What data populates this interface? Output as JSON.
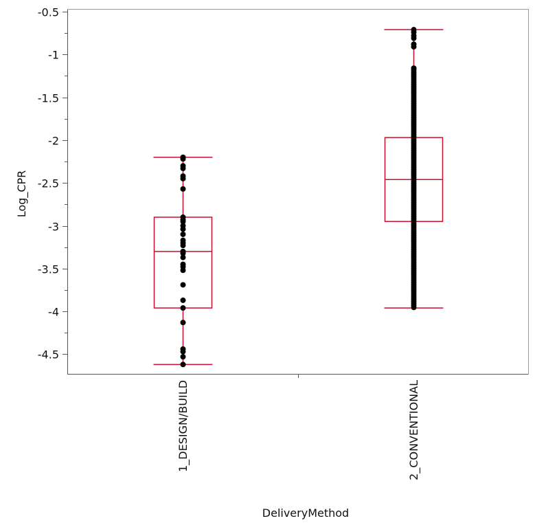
{
  "chart_data": {
    "type": "box",
    "xlabel": "DeliveryMethod",
    "ylabel": "Log_CPR",
    "ylim": [
      -4.75,
      -0.5
    ],
    "yticks": [
      -0.5,
      -1,
      -1.5,
      -2,
      -2.5,
      -3,
      -3.5,
      -4,
      -4.5
    ],
    "ytick_labels": [
      "-0.5",
      "-1",
      "-1.5",
      "-2",
      "-2.5",
      "-3",
      "-3.5",
      "-4",
      "-4.5"
    ],
    "categories": [
      "1_DESIGN/BUILD",
      "2_CONVENTIONAL"
    ],
    "grid": false,
    "box_color": "#c8102e",
    "point_color": "#000000",
    "boxes": [
      {
        "category": "1_DESIGN/BUILD",
        "whisker_low": -4.62,
        "q1": -3.96,
        "median": -3.3,
        "q3": -2.9,
        "whisker_high": -2.2,
        "points": [
          -2.2,
          -2.22,
          -2.3,
          -2.33,
          -2.42,
          -2.45,
          -2.57,
          -2.9,
          -2.93,
          -2.95,
          -3.0,
          -3.04,
          -3.1,
          -3.17,
          -3.2,
          -3.23,
          -3.3,
          -3.32,
          -3.37,
          -3.45,
          -3.48,
          -3.52,
          -3.69,
          -3.87,
          -3.96,
          -4.13,
          -4.44,
          -4.47,
          -4.53,
          -4.62
        ]
      },
      {
        "category": "2_CONVENTIONAL",
        "whisker_low": -3.96,
        "q1": -2.95,
        "median": -2.46,
        "q3": -1.97,
        "whisker_high": -0.71,
        "points": [
          -0.71,
          -0.74,
          -0.78,
          -0.81,
          -0.88,
          -0.91,
          -1.16
        ],
        "dense_range": [
          -3.96,
          -1.16
        ]
      }
    ]
  }
}
